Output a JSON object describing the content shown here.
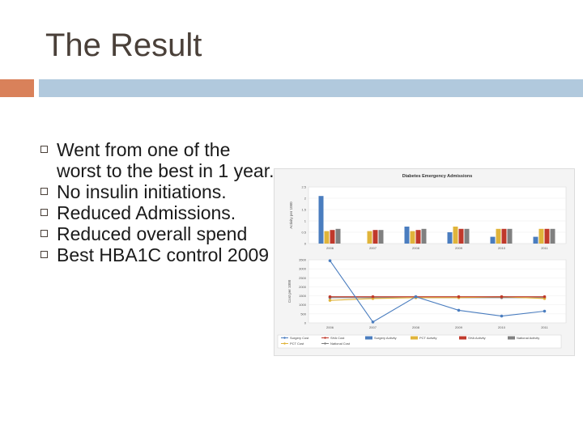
{
  "slide": {
    "title": "The Result",
    "bullets": [
      "Went from one of the worst to the best in 1 year.",
      "No insulin initiations.",
      "Reduced Admissions.",
      "Reduced overall spend",
      "Best HBA1C control 2009"
    ]
  },
  "colors": {
    "title": "#4a4039",
    "accent_orange": "#d9815a",
    "accent_blue": "#b1c9dd",
    "surgery": "#4a7dbf",
    "sha": "#c0392b",
    "pct": "#e0b43a",
    "national": "#808080"
  },
  "chart_data": [
    {
      "type": "bar",
      "title": "Diabetes Emergency Admissions",
      "ylabel": "Activity per 1000",
      "categories": [
        "2006",
        "2007",
        "2008",
        "2009",
        "2010",
        "2011"
      ],
      "yticks": [
        "0",
        "0.5",
        "1",
        "1.5",
        "2",
        "2.5"
      ],
      "ylim": [
        0,
        2.5
      ],
      "series": [
        {
          "name": "Surgery Activity",
          "color": "#4a7dbf",
          "values": [
            2.1,
            0,
            0.75,
            0.5,
            0.3,
            0.3
          ]
        },
        {
          "name": "PCT Activity",
          "color": "#e0b43a",
          "values": [
            0.55,
            0.55,
            0.55,
            0.75,
            0.65,
            0.65
          ]
        },
        {
          "name": "SHA Activity",
          "color": "#c0392b",
          "values": [
            0.6,
            0.6,
            0.6,
            0.65,
            0.65,
            0.65
          ]
        },
        {
          "name": "National Activity",
          "color": "#808080",
          "values": [
            0.65,
            0.6,
            0.65,
            0.65,
            0.65,
            0.65
          ]
        }
      ]
    },
    {
      "type": "line",
      "ylabel": "Cost per 1000",
      "categories": [
        "2006",
        "2007",
        "2008",
        "2009",
        "2010",
        "2011"
      ],
      "yticks": [
        "0",
        "500",
        "1000",
        "1500",
        "2000",
        "2500",
        "3000",
        "3500"
      ],
      "ylim": [
        0,
        3500
      ],
      "series": [
        {
          "name": "Surgery Cost",
          "color": "#4a7dbf",
          "values": [
            3450,
            50,
            1450,
            700,
            380,
            650
          ]
        },
        {
          "name": "SHA Cost",
          "color": "#c0392b",
          "values": [
            1450,
            1450,
            1450,
            1450,
            1450,
            1450
          ]
        },
        {
          "name": "PCT Cost",
          "color": "#e0b43a",
          "values": [
            1250,
            1350,
            1400,
            1400,
            1450,
            1350
          ]
        },
        {
          "name": "National Cost",
          "color": "#808080",
          "values": [
            1400,
            1400,
            1400,
            1400,
            1400,
            1400
          ]
        }
      ]
    }
  ],
  "legend": [
    {
      "label": "Surgery Cost",
      "kind": "line",
      "color": "#4a7dbf"
    },
    {
      "label": "SHA Cost",
      "kind": "line",
      "color": "#c0392b"
    },
    {
      "label": "Surgery Activity",
      "kind": "bar",
      "color": "#4a7dbf"
    },
    {
      "label": "PCT Activity",
      "kind": "bar",
      "color": "#e0b43a"
    },
    {
      "label": "SHA Activity",
      "kind": "bar",
      "color": "#c0392b"
    },
    {
      "label": "National Activity",
      "kind": "bar",
      "color": "#808080"
    },
    {
      "label": "PCT Cost",
      "kind": "line",
      "color": "#e0b43a"
    },
    {
      "label": "National Cost",
      "kind": "line",
      "color": "#808080"
    }
  ]
}
